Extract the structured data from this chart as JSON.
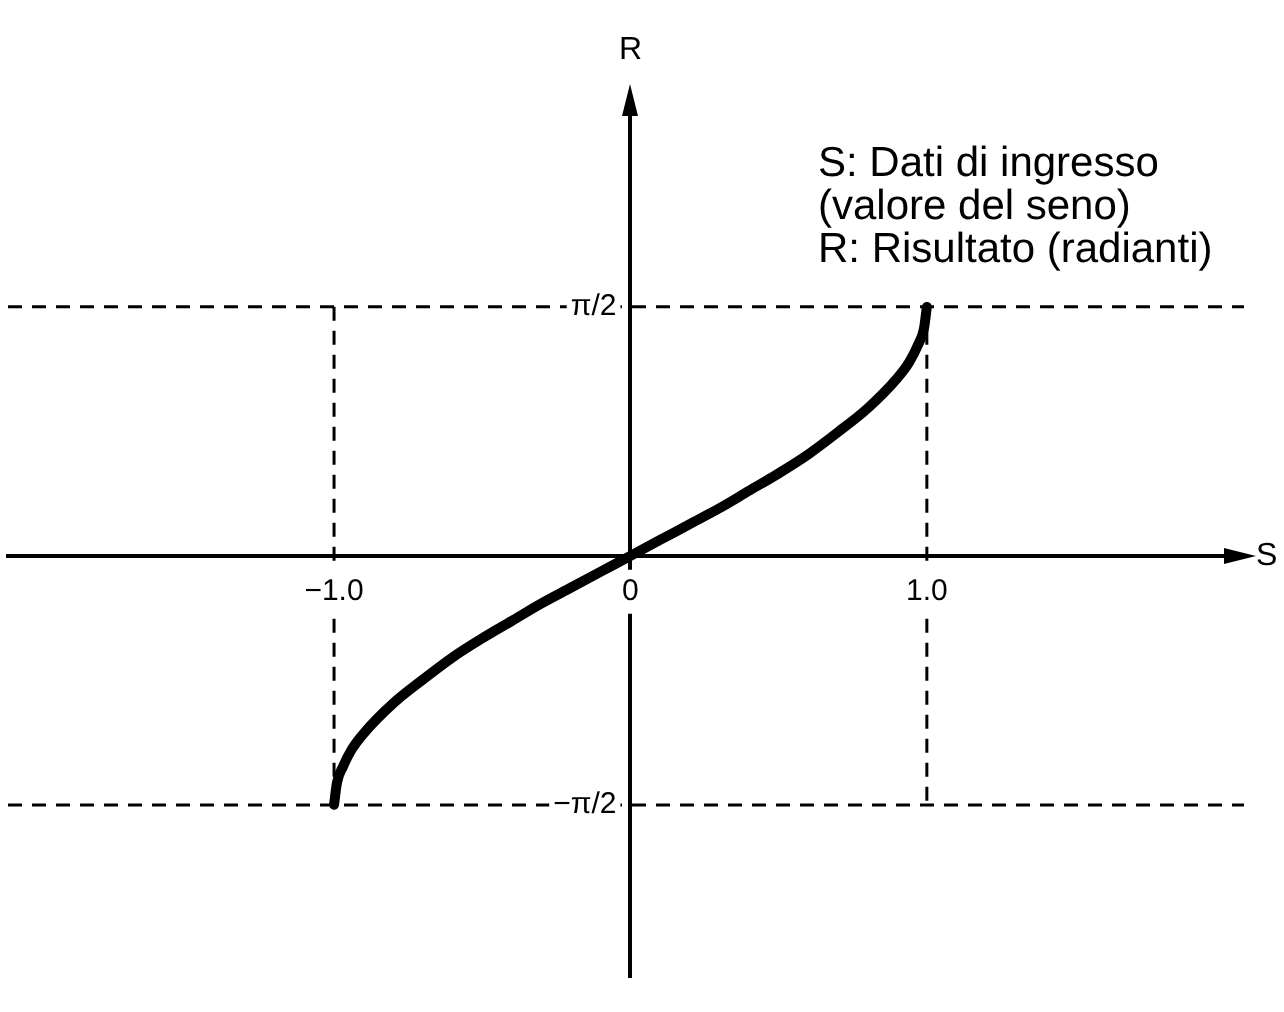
{
  "chart_data": {
    "type": "line",
    "xlabel": "S",
    "ylabel": "R",
    "annotations": [
      "S: Dati di ingresso",
      "(valore del seno)",
      "R: Risultato (radianti)"
    ],
    "x": [
      -1,
      -0.99,
      -0.97,
      -0.94,
      -0.9,
      -0.8,
      -0.7,
      -0.6,
      -0.5,
      -0.4,
      -0.3,
      -0.2,
      -0.1,
      0,
      0.1,
      0.2,
      0.3,
      0.4,
      0.5,
      0.6,
      0.7,
      0.8,
      0.9,
      0.94,
      0.97,
      0.99,
      1
    ],
    "series": [
      {
        "color": "#000000",
        "values": [
          -1.57,
          -1.43,
          -1.33,
          -1.22,
          -1.12,
          -0.93,
          -0.78,
          -0.64,
          -0.52,
          -0.41,
          -0.3,
          -0.2,
          -0.1,
          0,
          0.1,
          0.2,
          0.3,
          0.41,
          0.52,
          0.64,
          0.78,
          0.93,
          1.12,
          1.22,
          1.33,
          1.43,
          1.57
        ]
      }
    ],
    "xlim": [
      -2.1,
      2.07
    ],
    "ylim": [
      -2.65,
      2.9
    ],
    "xticks": [
      {
        "value": -1,
        "label": "−1.0"
      },
      0,
      {
        "value": 1,
        "label": "1.0"
      }
    ],
    "yticks": [
      {
        "value": -1.5708,
        "label": "−π/2"
      },
      {
        "value": 1.5708,
        "label": "π/2"
      }
    ],
    "ref_lines": [
      {
        "axis": "y",
        "value": 1.5708,
        "color": "#000000",
        "line_style": "dashed"
      },
      {
        "axis": "y",
        "value": -1.5708,
        "color": "#000000",
        "line_style": "dashed"
      },
      {
        "axis": "x",
        "value": -1,
        "color": "#000000",
        "line_style": "dashed"
      },
      {
        "axis": "x",
        "value": 1,
        "color": "#000000",
        "line_style": "dashed"
      }
    ],
    "marker": "none",
    "line_style": "solid"
  }
}
